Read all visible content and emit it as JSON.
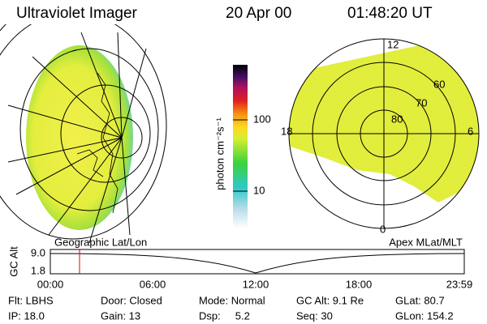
{
  "header": {
    "title": "Ultraviolet Imager",
    "date": "20 Apr 00",
    "time": "01:48:20 UT"
  },
  "colorbar": {
    "label": "photon cm⁻²s⁻¹",
    "ticks": [
      "100",
      "10"
    ]
  },
  "polar_labels": {
    "top": "12",
    "left": "18",
    "right": "6",
    "bottom": "0",
    "rings": [
      "60",
      "70",
      "80"
    ]
  },
  "orbit_plot": {
    "left_label": "Geographic Lat/Lon",
    "right_label": "Apex MLat/MLT",
    "y_label": "GC Alt",
    "y_ticks": [
      "9.0",
      "1.8"
    ],
    "x_ticks": [
      "00:00",
      "06:00",
      "12:00",
      "18:00",
      "23:59"
    ]
  },
  "status": [
    [
      "Flt: LBHS",
      "Door: Closed",
      "Mode: Normal",
      "GC Alt: 9.1 Re",
      "GLat: 80.7"
    ],
    [
      "IP: 18.0",
      "Gain: 13",
      "Dsp:     5.2",
      "Seq: 30",
      "GLon: 154.2"
    ]
  ]
}
